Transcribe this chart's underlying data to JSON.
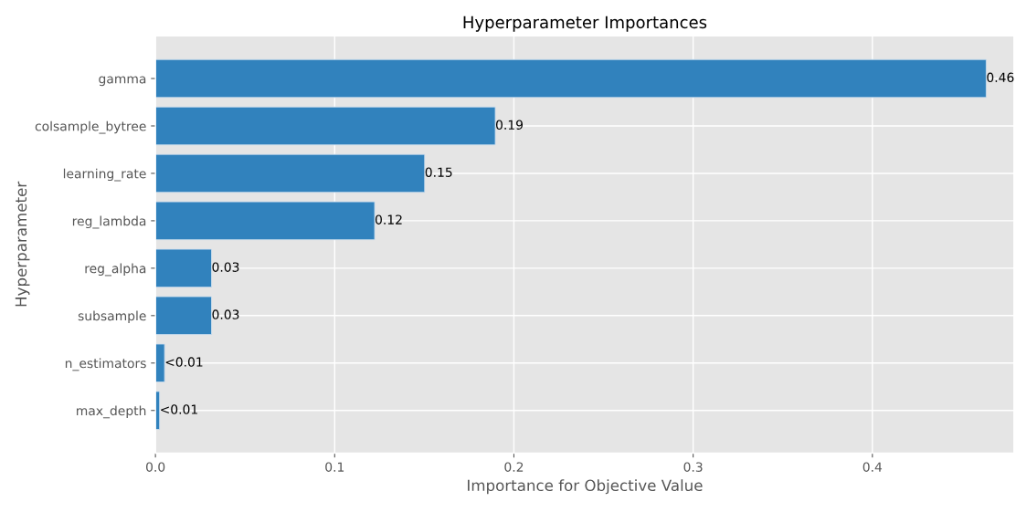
{
  "chart_data": {
    "type": "bar",
    "orientation": "horizontal",
    "title": "Hyperparameter Importances",
    "xlabel": "Importance for Objective Value",
    "ylabel": "Hyperparameter",
    "categories": [
      "gamma",
      "colsample_bytree",
      "learning_rate",
      "reg_lambda",
      "reg_alpha",
      "subsample",
      "n_estimators",
      "max_depth"
    ],
    "values": [
      0.4635,
      0.1896,
      0.1502,
      0.1223,
      0.0313,
      0.0313,
      0.0051,
      0.0023
    ],
    "value_labels": [
      "0.46",
      "0.19",
      "0.15",
      "0.12",
      "0.03",
      "0.03",
      "<0.01",
      "<0.01"
    ],
    "color": "#3182bd",
    "xlim": [
      0,
      0.479
    ],
    "xticks": [
      {
        "value": 0,
        "label": "0.0"
      },
      {
        "value": 0.1,
        "label": "0.1"
      },
      {
        "value": 0.2,
        "label": "0.2"
      },
      {
        "value": 0.3,
        "label": "0.3"
      },
      {
        "value": 0.4,
        "label": "0.4"
      }
    ],
    "grid": true
  }
}
